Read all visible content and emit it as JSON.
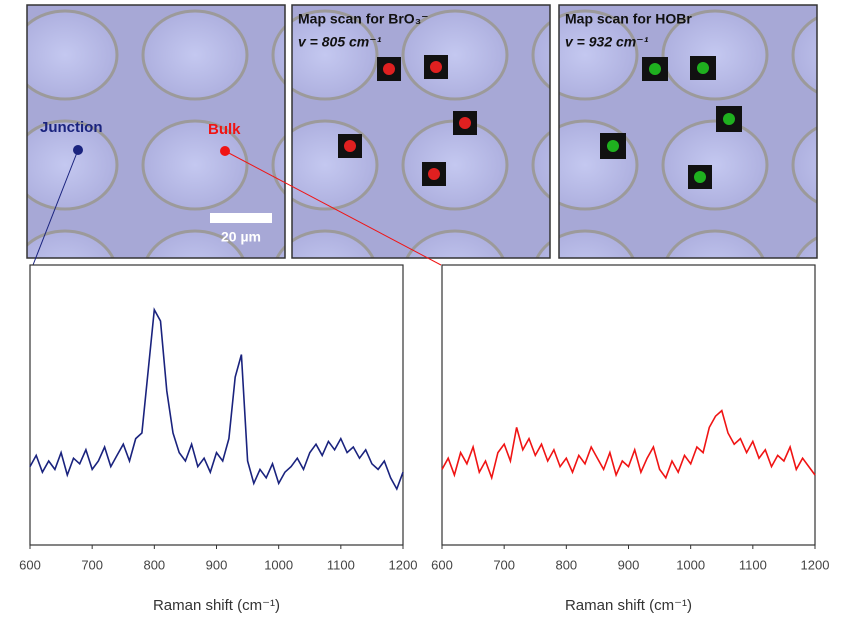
{
  "micrographs": {
    "junction_label": "Junction",
    "bulk_label": "Bulk",
    "scale_bar": "20 µm",
    "maps": [
      {
        "title": "Map scan for BrO₃⁻",
        "subtitle": "v = 805 cm⁻¹"
      },
      {
        "title": "Map scan for HOBr",
        "subtitle": "v = 932 cm⁻¹"
      }
    ]
  },
  "chart_data": [
    {
      "type": "line",
      "xlabel": "Raman shift (cm⁻¹)",
      "x": [
        600,
        610,
        620,
        630,
        640,
        650,
        660,
        670,
        680,
        690,
        700,
        710,
        720,
        730,
        740,
        750,
        760,
        770,
        780,
        790,
        800,
        810,
        820,
        830,
        840,
        850,
        860,
        870,
        880,
        890,
        900,
        910,
        920,
        930,
        940,
        950,
        960,
        970,
        980,
        990,
        1000,
        1010,
        1020,
        1030,
        1040,
        1050,
        1060,
        1070,
        1080,
        1090,
        1100,
        1110,
        1120,
        1130,
        1140,
        1150,
        1160,
        1170,
        1180,
        1190,
        1200
      ],
      "series": [
        {
          "color": "#1a237e",
          "values": [
            28,
            32,
            26,
            30,
            27,
            33,
            25,
            31,
            29,
            34,
            27,
            30,
            35,
            28,
            32,
            36,
            30,
            38,
            40,
            62,
            84,
            80,
            55,
            40,
            33,
            30,
            36,
            28,
            31,
            26,
            33,
            30,
            38,
            60,
            68,
            30,
            22,
            27,
            24,
            29,
            22,
            26,
            28,
            31,
            27,
            33,
            36,
            32,
            37,
            34,
            38,
            33,
            35,
            31,
            34,
            29,
            27,
            30,
            24,
            20,
            26
          ]
        }
      ],
      "xlim": [
        600,
        1200
      ],
      "ylim": [
        0,
        100
      ],
      "xticks": [
        600,
        700,
        800,
        900,
        1000,
        1100,
        1200
      ]
    },
    {
      "type": "line",
      "xlabel": "Raman shift (cm⁻¹)",
      "x": [
        600,
        610,
        620,
        630,
        640,
        650,
        660,
        670,
        680,
        690,
        700,
        710,
        720,
        730,
        740,
        750,
        760,
        770,
        780,
        790,
        800,
        810,
        820,
        830,
        840,
        850,
        860,
        870,
        880,
        890,
        900,
        910,
        920,
        930,
        940,
        950,
        960,
        970,
        980,
        990,
        1000,
        1010,
        1020,
        1030,
        1040,
        1050,
        1060,
        1070,
        1080,
        1090,
        1100,
        1110,
        1120,
        1130,
        1140,
        1150,
        1160,
        1170,
        1180,
        1190,
        1200
      ],
      "series": [
        {
          "color": "#f01414",
          "values": [
            27,
            31,
            25,
            33,
            29,
            35,
            26,
            30,
            24,
            33,
            36,
            30,
            42,
            34,
            38,
            32,
            36,
            30,
            34,
            28,
            31,
            26,
            32,
            29,
            35,
            31,
            27,
            33,
            25,
            30,
            28,
            34,
            26,
            31,
            35,
            27,
            24,
            30,
            26,
            32,
            29,
            35,
            33,
            42,
            46,
            48,
            40,
            36,
            38,
            33,
            37,
            31,
            34,
            28,
            32,
            30,
            35,
            27,
            31,
            28,
            25
          ]
        }
      ],
      "xlim": [
        600,
        1200
      ],
      "ylim": [
        0,
        100
      ],
      "xticks": [
        600,
        700,
        800,
        900,
        1000,
        1100,
        1200
      ]
    }
  ]
}
